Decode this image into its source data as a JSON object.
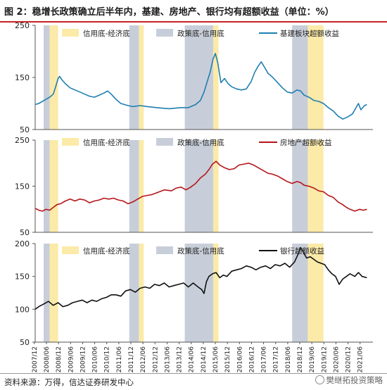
{
  "title": "图 2：稳增长政策确立后半年内，基建、房地产、银行均有超额收益（单位：%）",
  "source": "资料来源：万得，信达证券研发中心",
  "watermark": "樊继拓投资策略",
  "colors": {
    "title_rule": "#c82424",
    "band_credit_econ": "#fbeaa8",
    "band_policy_credit": "#c8ced9",
    "infra_line": "#1f7fb3",
    "realestate_line": "#b5161b",
    "bank_line": "#111111"
  },
  "chart_data": [
    {
      "type": "line",
      "panel": "infra",
      "x_tick_labels": [
        "2007/12",
        "2008/06",
        "2008/12",
        "2009/06",
        "2009/12",
        "2010/06",
        "2010/12",
        "2011/06",
        "2011/12",
        "2012/06",
        "2012/12",
        "2013/06",
        "2013/12",
        "2014/06",
        "2014/12",
        "2015/06",
        "2015/12",
        "2016/06",
        "2016/12",
        "2017/06",
        "2017/12",
        "2018/06",
        "2018/12",
        "2019/06",
        "2019/12",
        "2020/06",
        "2020/12",
        "2021/06"
      ],
      "ylim": [
        50,
        250
      ],
      "yticks": [
        50,
        150,
        250
      ],
      "legend": [
        "信用底-经济底",
        "政策底-信用底",
        "基建板块超额收益"
      ],
      "series": [
        {
          "name": "基建板块超额收益",
          "points": [
            [
              2007.95,
              98
            ],
            [
              2008.1,
              100
            ],
            [
              2008.25,
              104
            ],
            [
              2008.4,
              108
            ],
            [
              2008.55,
              112
            ],
            [
              2008.7,
              118
            ],
            [
              2008.8,
              132
            ],
            [
              2008.9,
              148
            ],
            [
              2008.96,
              152
            ],
            [
              2009.05,
              146
            ],
            [
              2009.2,
              138
            ],
            [
              2009.4,
              130
            ],
            [
              2009.6,
              126
            ],
            [
              2009.8,
              122
            ],
            [
              2010.0,
              118
            ],
            [
              2010.2,
              114
            ],
            [
              2010.4,
              112
            ],
            [
              2010.6,
              116
            ],
            [
              2010.8,
              120
            ],
            [
              2010.95,
              124
            ],
            [
              2011.1,
              118
            ],
            [
              2011.3,
              108
            ],
            [
              2011.5,
              100
            ],
            [
              2011.8,
              96
            ],
            [
              2012.0,
              94
            ],
            [
              2012.3,
              96
            ],
            [
              2012.6,
              94
            ],
            [
              2013.0,
              92
            ],
            [
              2013.5,
              90
            ],
            [
              2014.0,
              92
            ],
            [
              2014.3,
              92
            ],
            [
              2014.6,
              98
            ],
            [
              2014.8,
              106
            ],
            [
              2014.95,
              122
            ],
            [
              2015.08,
              142
            ],
            [
              2015.2,
              160
            ],
            [
              2015.32,
              185
            ],
            [
              2015.42,
              196
            ],
            [
              2015.52,
              178
            ],
            [
              2015.65,
              140
            ],
            [
              2015.8,
              148
            ],
            [
              2015.95,
              138
            ],
            [
              2016.1,
              132
            ],
            [
              2016.3,
              128
            ],
            [
              2016.5,
              126
            ],
            [
              2016.7,
              128
            ],
            [
              2016.9,
              142
            ],
            [
              2017.05,
              160
            ],
            [
              2017.2,
              172
            ],
            [
              2017.32,
              180
            ],
            [
              2017.45,
              170
            ],
            [
              2017.6,
              158
            ],
            [
              2017.8,
              150
            ],
            [
              2018.0,
              140
            ],
            [
              2018.2,
              130
            ],
            [
              2018.4,
              122
            ],
            [
              2018.6,
              120
            ],
            [
              2018.8,
              126
            ],
            [
              2018.95,
              124
            ],
            [
              2019.1,
              116
            ],
            [
              2019.3,
              112
            ],
            [
              2019.5,
              106
            ],
            [
              2019.7,
              104
            ],
            [
              2019.9,
              100
            ],
            [
              2020.1,
              92
            ],
            [
              2020.3,
              86
            ],
            [
              2020.5,
              76
            ],
            [
              2020.7,
              70
            ],
            [
              2020.9,
              74
            ],
            [
              2021.1,
              80
            ],
            [
              2021.25,
              92
            ],
            [
              2021.35,
              100
            ],
            [
              2021.45,
              88
            ],
            [
              2021.6,
              96
            ],
            [
              2021.7,
              98
            ]
          ]
        }
      ],
      "bands_credit_econ": [
        [
          2008.55,
          2008.9
        ],
        [
          2012.25,
          2012.45
        ],
        [
          2015.33,
          2015.55
        ],
        [
          2019.25,
          2019.9
        ]
      ],
      "bands_policy_credit": [
        [
          2008.3,
          2008.55
        ],
        [
          2011.85,
          2012.25
        ],
        [
          2014.15,
          2015.33
        ],
        [
          2018.6,
          2019.25
        ]
      ]
    },
    {
      "type": "line",
      "panel": "real_estate",
      "ylim": [
        50,
        250
      ],
      "yticks": [
        50,
        150,
        250
      ],
      "legend": [
        "信用底-经济底",
        "政策底-信用底",
        "房地产超额收益"
      ],
      "series": [
        {
          "name": "房地产超额收益",
          "points": [
            [
              2007.95,
              102
            ],
            [
              2008.1,
              98
            ],
            [
              2008.25,
              96
            ],
            [
              2008.4,
              100
            ],
            [
              2008.55,
              98
            ],
            [
              2008.7,
              104
            ],
            [
              2008.85,
              110
            ],
            [
              2009.0,
              112
            ],
            [
              2009.2,
              118
            ],
            [
              2009.4,
              122
            ],
            [
              2009.6,
              118
            ],
            [
              2009.8,
              122
            ],
            [
              2010.0,
              120
            ],
            [
              2010.2,
              114
            ],
            [
              2010.4,
              118
            ],
            [
              2010.6,
              120
            ],
            [
              2010.8,
              124
            ],
            [
              2011.0,
              122
            ],
            [
              2011.2,
              124
            ],
            [
              2011.4,
              120
            ],
            [
              2011.6,
              118
            ],
            [
              2011.8,
              112
            ],
            [
              2012.0,
              116
            ],
            [
              2012.2,
              122
            ],
            [
              2012.4,
              128
            ],
            [
              2012.6,
              130
            ],
            [
              2012.8,
              132
            ],
            [
              2013.0,
              136
            ],
            [
              2013.3,
              142
            ],
            [
              2013.6,
              140
            ],
            [
              2013.8,
              146
            ],
            [
              2014.0,
              148
            ],
            [
              2014.2,
              142
            ],
            [
              2014.4,
              148
            ],
            [
              2014.6,
              156
            ],
            [
              2014.8,
              168
            ],
            [
              2015.0,
              176
            ],
            [
              2015.15,
              186
            ],
            [
              2015.3,
              198
            ],
            [
              2015.45,
              204
            ],
            [
              2015.6,
              196
            ],
            [
              2015.8,
              190
            ],
            [
              2016.0,
              186
            ],
            [
              2016.2,
              188
            ],
            [
              2016.4,
              196
            ],
            [
              2016.6,
              198
            ],
            [
              2016.8,
              200
            ],
            [
              2017.0,
              196
            ],
            [
              2017.2,
              190
            ],
            [
              2017.4,
              184
            ],
            [
              2017.6,
              178
            ],
            [
              2017.8,
              176
            ],
            [
              2018.0,
              172
            ],
            [
              2018.2,
              166
            ],
            [
              2018.4,
              160
            ],
            [
              2018.6,
              156
            ],
            [
              2018.8,
              160
            ],
            [
              2018.95,
              158
            ],
            [
              2019.1,
              152
            ],
            [
              2019.3,
              150
            ],
            [
              2019.5,
              146
            ],
            [
              2019.7,
              140
            ],
            [
              2019.9,
              138
            ],
            [
              2020.1,
              130
            ],
            [
              2020.3,
              126
            ],
            [
              2020.5,
              116
            ],
            [
              2020.7,
              110
            ],
            [
              2020.85,
              104
            ],
            [
              2021.0,
              100
            ],
            [
              2021.2,
              96
            ],
            [
              2021.4,
              100
            ],
            [
              2021.55,
              98
            ],
            [
              2021.7,
              100
            ]
          ]
        }
      ],
      "bands_credit_econ": [
        [
          2008.55,
          2008.9
        ],
        [
          2012.25,
          2012.45
        ],
        [
          2015.33,
          2015.55
        ],
        [
          2019.25,
          2019.9
        ]
      ],
      "bands_policy_credit": [
        [
          2008.3,
          2008.55
        ],
        [
          2011.85,
          2012.25
        ],
        [
          2014.15,
          2015.33
        ],
        [
          2018.6,
          2019.25
        ]
      ]
    },
    {
      "type": "line",
      "panel": "bank",
      "ylim": [
        50,
        200
      ],
      "yticks": [
        50,
        100,
        150,
        200
      ],
      "legend": [
        "信用底-经济底",
        "政策底-信用底",
        "银行超额收益"
      ],
      "series": [
        {
          "name": "银行超额收益",
          "points": [
            [
              2007.95,
              100
            ],
            [
              2008.1,
              104
            ],
            [
              2008.3,
              108
            ],
            [
              2008.5,
              112
            ],
            [
              2008.7,
              106
            ],
            [
              2008.9,
              110
            ],
            [
              2009.1,
              104
            ],
            [
              2009.3,
              106
            ],
            [
              2009.5,
              110
            ],
            [
              2009.7,
              112
            ],
            [
              2009.9,
              114
            ],
            [
              2010.1,
              110
            ],
            [
              2010.3,
              114
            ],
            [
              2010.5,
              112
            ],
            [
              2010.7,
              116
            ],
            [
              2010.9,
              118
            ],
            [
              2011.1,
              122
            ],
            [
              2011.3,
              122
            ],
            [
              2011.5,
              120
            ],
            [
              2011.7,
              128
            ],
            [
              2011.9,
              130
            ],
            [
              2012.1,
              126
            ],
            [
              2012.3,
              132
            ],
            [
              2012.5,
              134
            ],
            [
              2012.7,
              132
            ],
            [
              2012.9,
              138
            ],
            [
              2013.1,
              136
            ],
            [
              2013.3,
              140
            ],
            [
              2013.5,
              134
            ],
            [
              2013.7,
              136
            ],
            [
              2013.9,
              138
            ],
            [
              2014.1,
              140
            ],
            [
              2014.3,
              134
            ],
            [
              2014.5,
              140
            ],
            [
              2014.7,
              134
            ],
            [
              2014.85,
              130
            ],
            [
              2014.95,
              124
            ],
            [
              2015.05,
              142
            ],
            [
              2015.15,
              150
            ],
            [
              2015.3,
              154
            ],
            [
              2015.45,
              156
            ],
            [
              2015.6,
              148
            ],
            [
              2015.75,
              152
            ],
            [
              2015.9,
              150
            ],
            [
              2016.1,
              158
            ],
            [
              2016.3,
              160
            ],
            [
              2016.5,
              162
            ],
            [
              2016.7,
              166
            ],
            [
              2016.9,
              164
            ],
            [
              2017.1,
              160
            ],
            [
              2017.3,
              164
            ],
            [
              2017.5,
              166
            ],
            [
              2017.7,
              162
            ],
            [
              2017.9,
              168
            ],
            [
              2018.1,
              166
            ],
            [
              2018.3,
              170
            ],
            [
              2018.5,
              164
            ],
            [
              2018.7,
              172
            ],
            [
              2018.85,
              184
            ],
            [
              2018.95,
              194
            ],
            [
              2019.05,
              188
            ],
            [
              2019.2,
              178
            ],
            [
              2019.35,
              180
            ],
            [
              2019.5,
              176
            ],
            [
              2019.65,
              172
            ],
            [
              2019.8,
              170
            ],
            [
              2019.95,
              168
            ],
            [
              2020.1,
              160
            ],
            [
              2020.25,
              154
            ],
            [
              2020.4,
              150
            ],
            [
              2020.55,
              138
            ],
            [
              2020.7,
              146
            ],
            [
              2020.85,
              150
            ],
            [
              2021.0,
              154
            ],
            [
              2021.2,
              150
            ],
            [
              2021.35,
              156
            ],
            [
              2021.5,
              150
            ],
            [
              2021.7,
              148
            ]
          ]
        }
      ],
      "bands_credit_econ": [
        [
          2008.55,
          2008.9
        ],
        [
          2012.25,
          2012.45
        ],
        [
          2015.33,
          2015.55
        ],
        [
          2019.25,
          2019.9
        ]
      ],
      "bands_policy_credit": [
        [
          2008.3,
          2008.55
        ],
        [
          2011.85,
          2012.25
        ],
        [
          2014.15,
          2015.33
        ],
        [
          2018.6,
          2019.25
        ]
      ]
    }
  ]
}
